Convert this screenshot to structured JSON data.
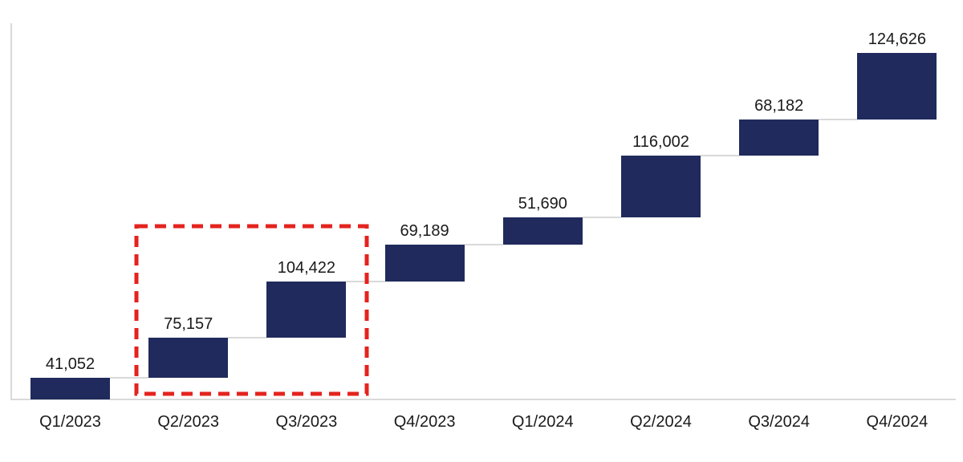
{
  "chart_data": {
    "type": "bar",
    "subtype": "waterfall",
    "title": "",
    "xlabel": "",
    "ylabel": "",
    "categories": [
      "Q1/2023",
      "Q2/2023",
      "Q3/2023",
      "Q4/2023",
      "Q1/2024",
      "Q2/2024",
      "Q3/2024",
      "Q4/2024"
    ],
    "values": [
      41052,
      75157,
      104422,
      69189,
      51690,
      116002,
      68182,
      124626
    ],
    "value_labels": [
      "41,052",
      "75,157",
      "104,422",
      "69,189",
      "51,690",
      "116,002",
      "68,182",
      "124,626"
    ],
    "cumulative": [
      41052,
      116209,
      220631,
      289820,
      341510,
      457512,
      525694,
      650320
    ],
    "ylim": [
      0,
      650320
    ],
    "grid": false,
    "legend": "none",
    "bar_color": "#202a5c",
    "connector_color": "#d9d9d9",
    "axis_color": "#d9d9d9",
    "label_color": "#1a1a1a",
    "highlight": {
      "style": "dashed-rectangle",
      "color": "#e4231e",
      "quarters": [
        "Q2/2023",
        "Q3/2023"
      ]
    }
  }
}
